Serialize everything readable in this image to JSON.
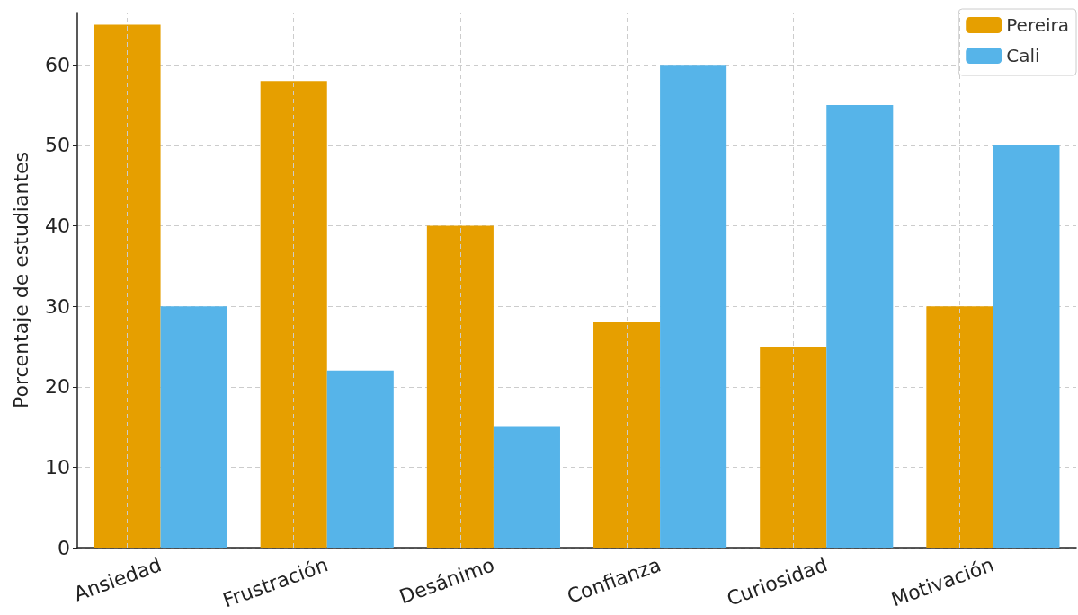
{
  "chart_data": {
    "type": "bar",
    "ylabel": "Porcentaje de estudiantes",
    "categories": [
      "Ansiedad",
      "Frustración",
      "Desánimo",
      "Confianza",
      "Curiosidad",
      "Motivación"
    ],
    "series": [
      {
        "name": "Pereira",
        "color": "#e69f00",
        "values": [
          65,
          58,
          40,
          28,
          25,
          30
        ]
      },
      {
        "name": "Cali",
        "color": "#56b4e9",
        "values": [
          30,
          22,
          15,
          60,
          55,
          50
        ]
      }
    ],
    "ylim": [
      0,
      66.5
    ],
    "yticks": [
      0,
      10,
      20,
      30,
      40,
      50,
      60
    ],
    "grid": true,
    "legend": "top right"
  }
}
